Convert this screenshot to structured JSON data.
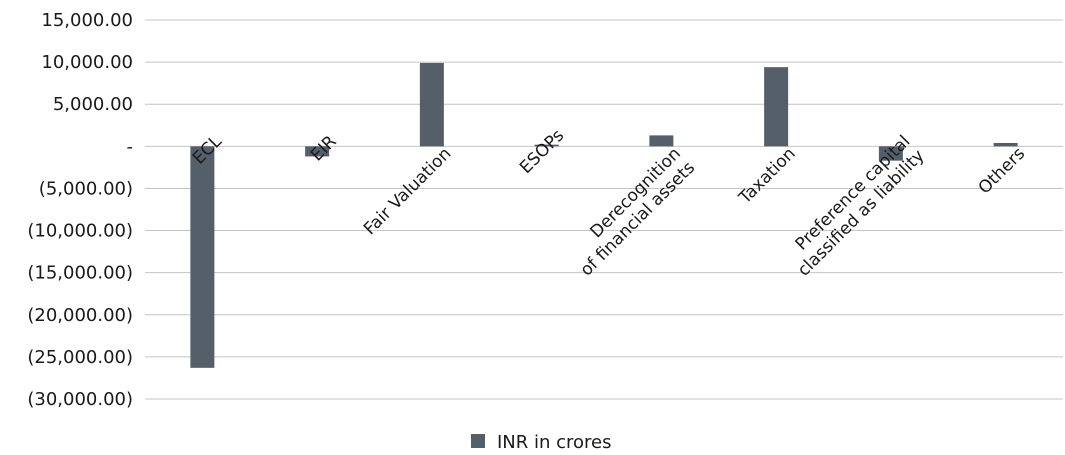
{
  "chart_data": {
    "type": "bar",
    "categories": [
      "ECL",
      "EIR",
      "Fair Valuation",
      "ESOPs",
      "Derecognition of financial assets",
      "Taxation",
      "Preference capital classified as liability",
      "Others"
    ],
    "category_label_lines": [
      [
        "ECL"
      ],
      [
        "EIR"
      ],
      [
        "Fair Valuation"
      ],
      [
        "ESOPs"
      ],
      [
        "Derecognition",
        "of financial assets"
      ],
      [
        "Taxation"
      ],
      [
        "Preference capital",
        "classified as liability"
      ],
      [
        "Others"
      ]
    ],
    "series": [
      {
        "name": "INR in crores",
        "values": [
          -26300,
          -1200,
          9900,
          200,
          1300,
          9400,
          -1700,
          400
        ]
      }
    ],
    "y_ticks": [
      {
        "value": 15000,
        "label": "15,000.00"
      },
      {
        "value": 10000,
        "label": "10,000.00"
      },
      {
        "value": 5000,
        "label": "5,000.00"
      },
      {
        "value": 0,
        "label": "-"
      },
      {
        "value": -5000,
        "label": "(5,000.00)"
      },
      {
        "value": -10000,
        "label": "(10,000.00)"
      },
      {
        "value": -15000,
        "label": "(15,000.00)"
      },
      {
        "value": -20000,
        "label": "(20,000.00)"
      },
      {
        "value": -25000,
        "label": "(25,000.00)"
      },
      {
        "value": -30000,
        "label": "(30,000.00)"
      }
    ],
    "ylim": [
      -30000,
      15000
    ],
    "grid": true,
    "legend_position": "bottom-center",
    "title": "",
    "xlabel": "",
    "ylabel": "",
    "colors": {
      "bar": "#555f6a",
      "grid": "#c4c4c4",
      "text": "#1a1a1a"
    }
  }
}
